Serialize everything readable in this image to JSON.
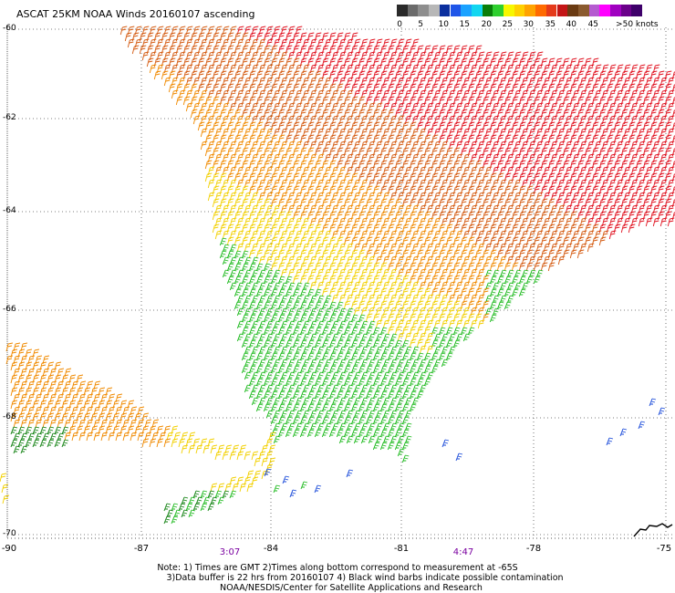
{
  "title": "ASCAT 25KM NOAA Winds 20160107 ascending",
  "legend": {
    "labels": [
      "0",
      "5",
      "10",
      "15",
      "20",
      "25",
      "30",
      "35",
      "40",
      "45",
      ">50 knots"
    ],
    "colors": [
      "#2a2a2a",
      "#6b6b6b",
      "#8e8e8e",
      "#b7b7b7",
      "#0b2f9e",
      "#1f55e8",
      "#1aa2ff",
      "#12d6f0",
      "#0a7e0a",
      "#2fcf2f",
      "#f7f700",
      "#ffd000",
      "#ffa300",
      "#ff6a00",
      "#e53a1a",
      "#c41616",
      "#6a3b12",
      "#8a5a2e",
      "#b55bd0",
      "#ff00ff",
      "#a000c0",
      "#6a008a",
      "#3e006a"
    ]
  },
  "latitudes": [
    "-60",
    "-62",
    "-64",
    "-66",
    "-68",
    "-70"
  ],
  "longitudes": [
    "-90",
    "-87",
    "-84",
    "-81",
    "-78",
    "-75"
  ],
  "times": [
    "3:07",
    "4:47"
  ],
  "notes": {
    "line1": "Note: 1) Times are GMT 2)Times along bottom correspond to measurement at -65S",
    "line2": "3)Data buffer is 22 hrs from 20160107 4) Black wind barbs indicate possible contamination",
    "line3": "NOAA/NESDIS/Center for Satellite Applications and Research"
  },
  "wind_colors": {
    "red": "#e0101e",
    "dark_orange": "#d45a10",
    "orange": "#f08a00",
    "yellow": "#f2d000",
    "green": "#18b818",
    "dark_green": "#0a7e0a",
    "blue": "#1446d8",
    "light_blue": "#1aa2ff"
  }
}
